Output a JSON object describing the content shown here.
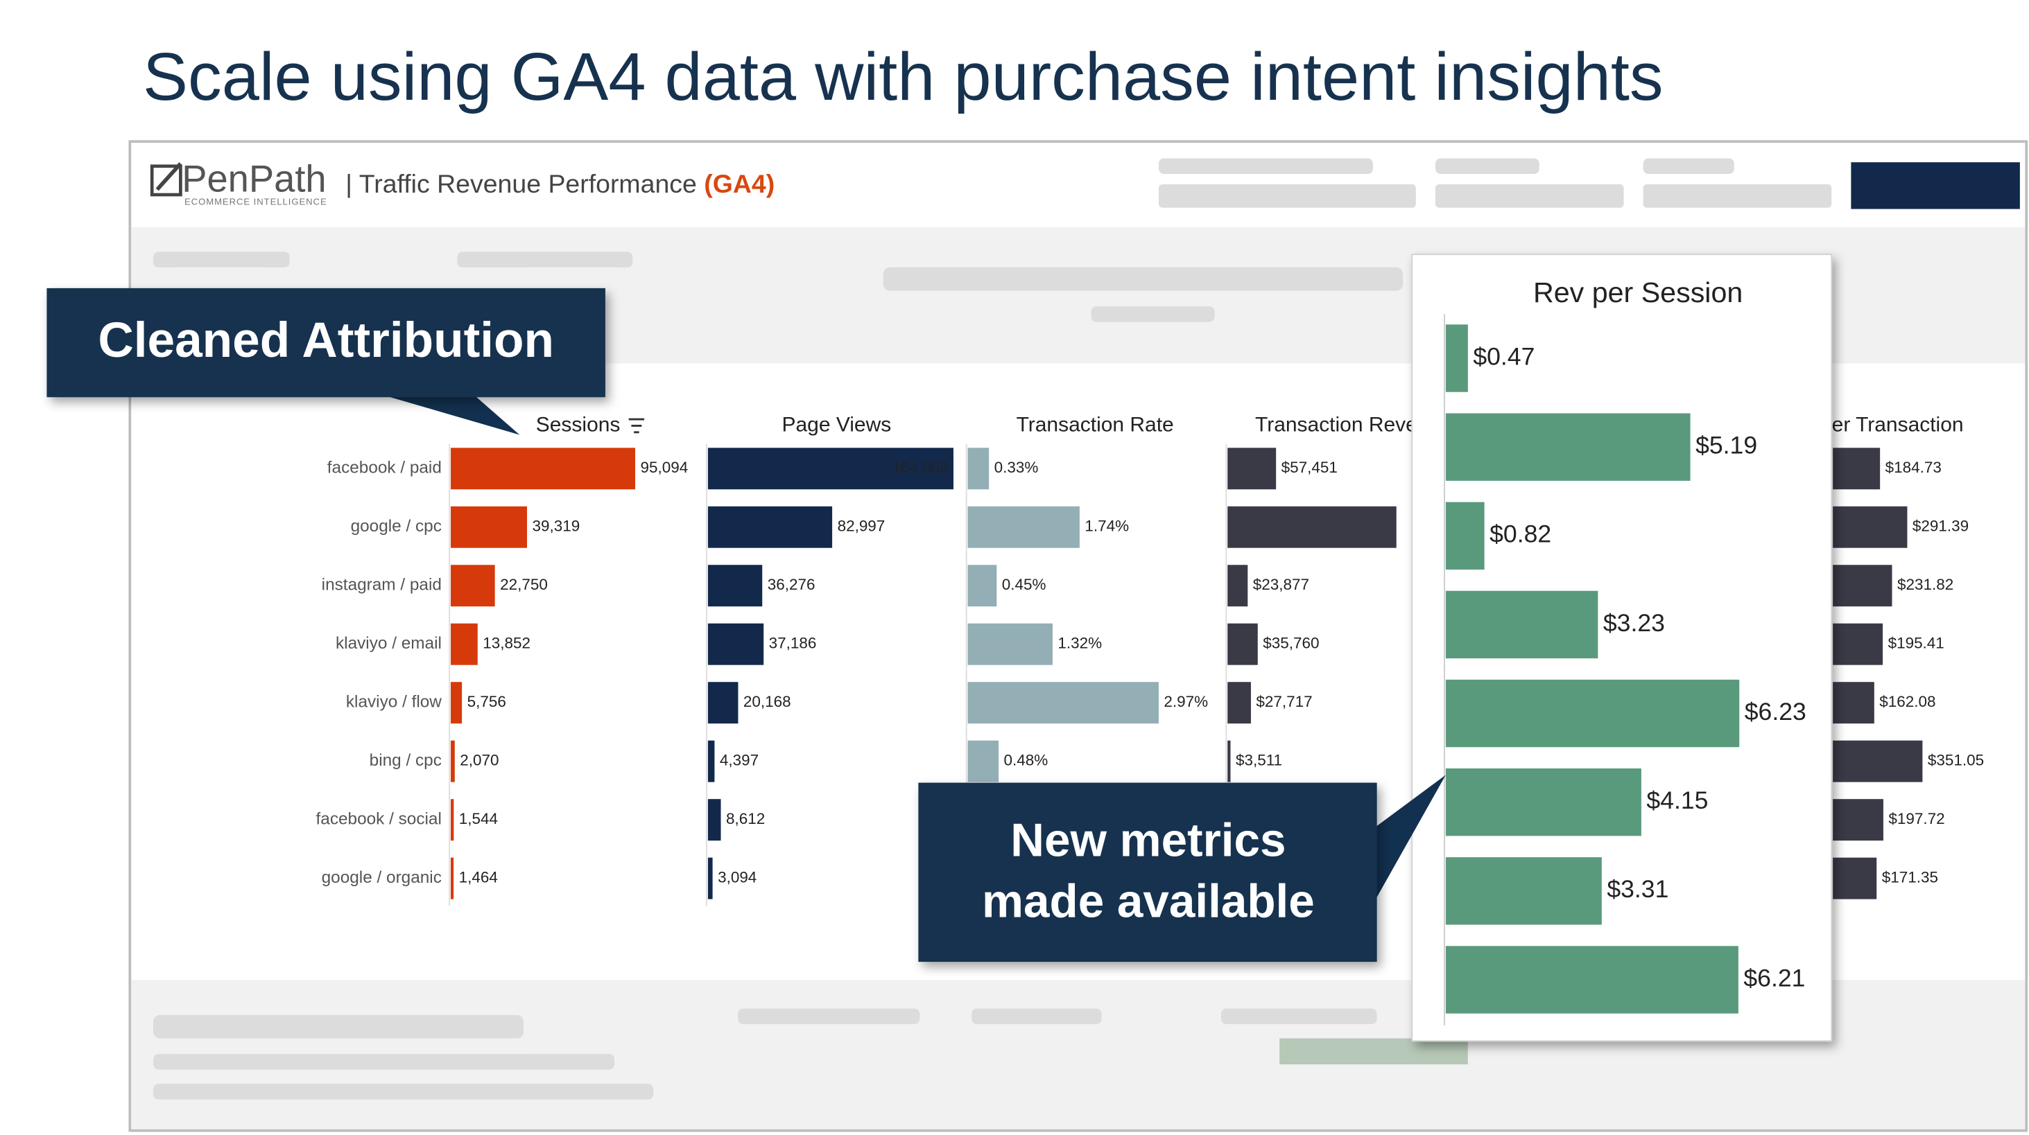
{
  "title": "Scale using GA4 data with purchase intent insights",
  "logo": {
    "name": "PenPath",
    "tagline": "ECOMMERCE INTELLIGENCE"
  },
  "header": {
    "title": "| Traffic Revenue Performance",
    "badge": "(GA4)"
  },
  "callouts": [
    "Cleaned Attribution",
    "New metrics made available"
  ],
  "chart_data": [
    {
      "type": "bar",
      "title": "Sessions",
      "color": "#d63a0a",
      "categories": [
        "facebook / paid",
        "google / cpc",
        "instagram / paid",
        "klaviyo / email",
        "klaviyo / flow",
        "bing / cpc",
        "facebook / social",
        "google / organic"
      ],
      "values": [
        95094,
        39319,
        22750,
        13852,
        5756,
        2070,
        1544,
        1464
      ],
      "value_labels": [
        "95,094",
        "39,319",
        "22,750",
        "13,852",
        "5,756",
        "2,070",
        "1,544",
        "1,464"
      ]
    },
    {
      "type": "bar",
      "title": "Page Views",
      "color": "#13294b",
      "values": [
        164002,
        82997,
        36276,
        37186,
        20168,
        4397,
        8612,
        3094
      ],
      "value_labels": [
        "164,002",
        "82,997",
        "36,276",
        "37,186",
        "20,168",
        "4,397",
        "8,612",
        "3,094"
      ]
    },
    {
      "type": "bar",
      "title": "Transaction Rate",
      "color": "#93aeb5",
      "values": [
        0.33,
        1.74,
        0.45,
        1.32,
        2.97,
        0.48,
        null,
        null
      ],
      "value_labels": [
        "0.33%",
        "1.74%",
        "0.45%",
        "1.32%",
        "2.97%",
        "0.48%",
        null,
        null
      ]
    },
    {
      "type": "bar",
      "title": "Transaction Revenue",
      "color": "#3a3a47",
      "values": [
        57451,
        200000,
        23877,
        35760,
        27717,
        3511,
        null,
        null
      ],
      "value_labels": [
        "$57,451",
        null,
        "$23,877",
        "$35,760",
        "$27,717",
        "$3,511",
        null,
        null
      ]
    },
    {
      "type": "bar",
      "title": "Rev per Transaction",
      "color": "#3a3a47",
      "values": [
        184.73,
        291.39,
        231.82,
        195.41,
        162.08,
        351.05,
        197.72,
        171.35
      ],
      "value_labels": [
        "$184.73",
        "$291.39",
        "$231.82",
        "$195.41",
        "$162.08",
        "$351.05",
        "$197.72",
        "$171.35"
      ]
    },
    {
      "type": "bar",
      "title": "Rev per Session",
      "color": "#5a9a7c",
      "values": [
        0.47,
        5.19,
        0.82,
        3.23,
        6.23,
        4.15,
        3.31,
        6.21
      ],
      "value_labels": [
        "$0.47",
        "$5.19",
        "$0.82",
        "$3.23",
        "$6.23",
        "$4.15",
        "$3.31",
        "$6.21"
      ]
    }
  ]
}
